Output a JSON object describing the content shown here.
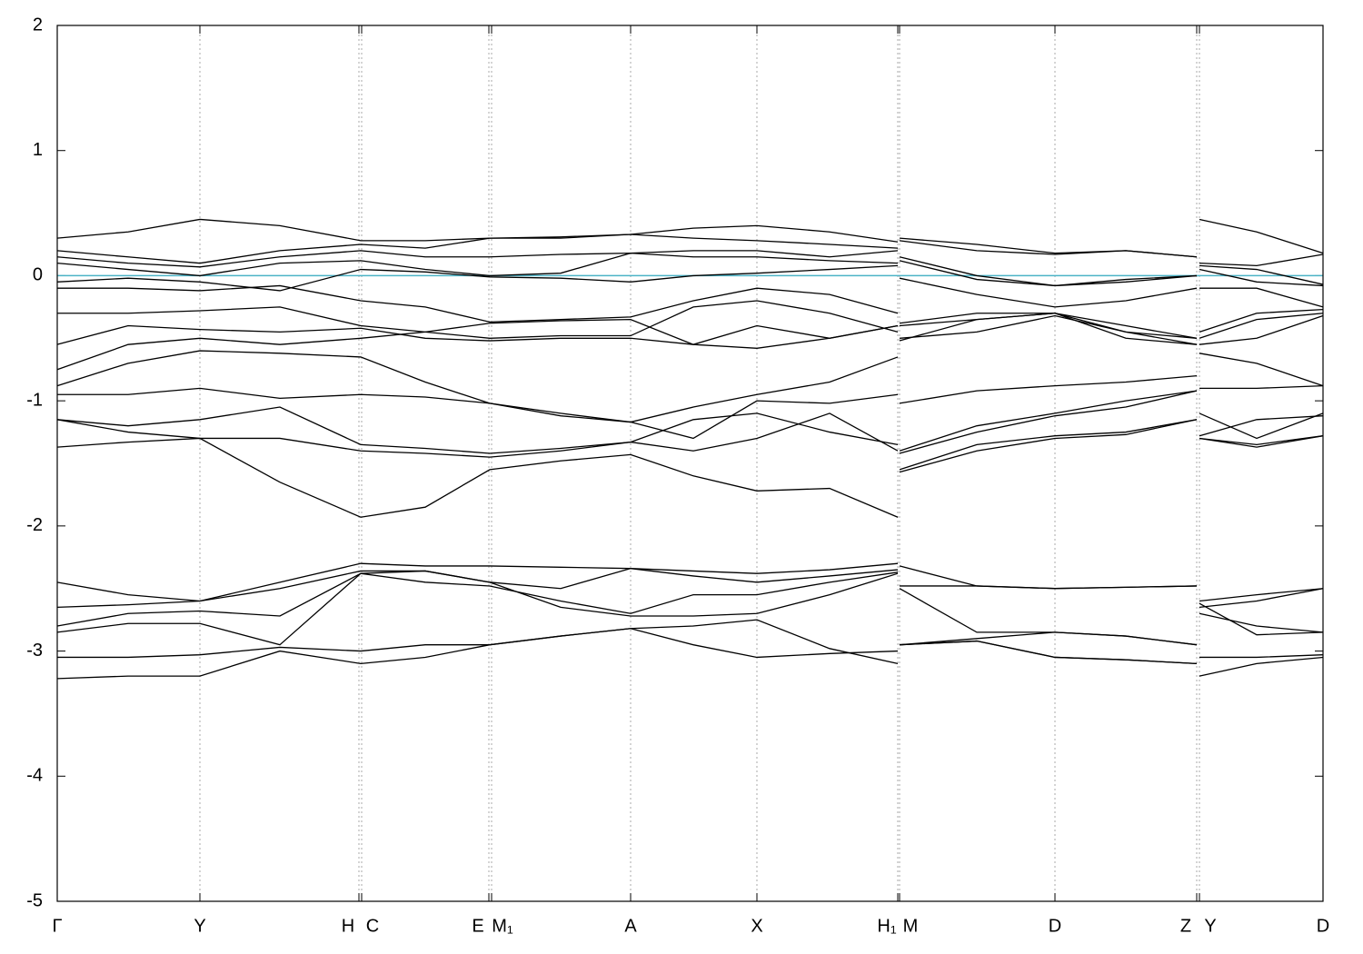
{
  "chart_data": {
    "type": "line",
    "x": [
      0,
      0.78,
      1.57,
      2.45,
      3.34,
      4.05,
      4.76,
      5.54,
      6.31,
      7.0,
      7.7,
      8.5,
      9.25,
      9.26,
      9.27,
      10.12,
      10.98,
      11.76,
      12.54,
      12.555,
      12.57,
      13.2,
      13.93
    ],
    "xlim": [
      0,
      13.93
    ],
    "xticks": [
      {
        "value": 0,
        "label": "Γ"
      },
      {
        "value": 1.57,
        "label": "Y"
      },
      {
        "value": 3.32,
        "label": "H"
      },
      {
        "value": 3.35,
        "label": "C"
      },
      {
        "value": 4.75,
        "label": "E"
      },
      {
        "value": 4.78,
        "label": "M₁"
      },
      {
        "value": 6.31,
        "label": "A"
      },
      {
        "value": 7.7,
        "label": "X"
      },
      {
        "value": 9.25,
        "label": "H₁"
      },
      {
        "value": 9.27,
        "label": "M"
      },
      {
        "value": 10.98,
        "label": "D"
      },
      {
        "value": 12.54,
        "label": "Z"
      },
      {
        "value": 12.57,
        "label": "Y"
      },
      {
        "value": 13.93,
        "label": "D"
      }
    ],
    "ylim": [
      -5,
      2
    ],
    "yticks": [
      -5,
      -4,
      -3,
      -2,
      -1,
      0,
      1,
      2
    ],
    "grid": true,
    "hlines": [
      {
        "y": 0,
        "color": "#4bb3c6"
      }
    ],
    "series": [
      {
        "color": "#000000",
        "values": [
          0.3,
          0.35,
          0.45,
          0.4,
          0.28,
          0.28,
          0.3,
          0.31,
          0.33,
          0.38,
          0.4,
          0.35,
          0.27,
          null,
          0.3,
          0.25,
          0.18,
          0.2,
          0.15,
          null,
          0.45,
          0.35,
          0.18
        ]
      },
      {
        "color": "#000000",
        "values": [
          0.2,
          0.15,
          0.1,
          0.2,
          0.25,
          0.22,
          0.3,
          0.3,
          0.33,
          0.3,
          0.28,
          0.25,
          0.22,
          null,
          0.28,
          0.2,
          0.17,
          0.2,
          0.15,
          null,
          0.1,
          0.08,
          0.17
        ]
      },
      {
        "color": "#000000",
        "values": [
          0.15,
          0.1,
          0.07,
          0.15,
          0.2,
          0.15,
          0.15,
          0.17,
          0.18,
          0.2,
          0.2,
          0.15,
          0.2,
          null,
          0.15,
          0.0,
          -0.08,
          -0.05,
          0.0,
          null,
          0.08,
          0.05,
          -0.07
        ]
      },
      {
        "color": "#000000",
        "values": [
          0.1,
          0.05,
          0.0,
          0.1,
          0.12,
          0.05,
          0.0,
          0.02,
          0.18,
          0.15,
          0.15,
          0.12,
          0.1,
          null,
          0.12,
          -0.03,
          -0.08,
          -0.03,
          0.0,
          null,
          0.05,
          -0.05,
          -0.08
        ]
      },
      {
        "color": "#000000",
        "values": [
          -0.05,
          -0.02,
          -0.05,
          -0.12,
          0.05,
          0.03,
          -0.01,
          -0.02,
          -0.05,
          0.0,
          0.02,
          0.05,
          0.08,
          null,
          -0.02,
          -0.15,
          -0.25,
          -0.2,
          -0.1,
          null,
          -0.1,
          -0.1,
          -0.25
        ]
      },
      {
        "color": "#000000",
        "values": [
          -0.1,
          -0.1,
          -0.12,
          -0.08,
          -0.2,
          -0.25,
          -0.37,
          -0.35,
          -0.33,
          -0.2,
          -0.1,
          -0.15,
          -0.3,
          null,
          -0.38,
          -0.3,
          -0.3,
          -0.45,
          -0.5,
          null,
          -0.45,
          -0.3,
          -0.27
        ]
      },
      {
        "color": "#000000",
        "values": [
          -0.3,
          -0.3,
          -0.28,
          -0.25,
          -0.4,
          -0.45,
          -0.5,
          -0.48,
          -0.48,
          -0.25,
          -0.2,
          -0.3,
          -0.45,
          null,
          -0.4,
          -0.35,
          -0.3,
          -0.5,
          -0.55,
          null,
          -0.5,
          -0.35,
          -0.3
        ]
      },
      {
        "color": "#000000",
        "values": [
          -0.55,
          -0.4,
          -0.43,
          -0.45,
          -0.42,
          -0.5,
          -0.52,
          -0.5,
          -0.5,
          -0.55,
          -0.4,
          -0.5,
          -0.4,
          null,
          -0.5,
          -0.45,
          -0.32,
          -0.45,
          -0.55,
          null,
          -0.55,
          -0.5,
          -0.32
        ]
      },
      {
        "color": "#000000",
        "values": [
          -0.75,
          -0.55,
          -0.5,
          -0.55,
          -0.5,
          -0.45,
          -0.38,
          -0.36,
          -0.35,
          -0.55,
          -0.58,
          -0.5,
          -0.4,
          null,
          -0.52,
          -0.35,
          -0.3,
          -0.4,
          -0.5,
          null,
          -0.62,
          -0.7,
          -0.88
        ]
      },
      {
        "color": "#000000",
        "values": [
          -0.88,
          -0.7,
          -0.6,
          -0.62,
          -0.65,
          -0.85,
          -1.02,
          -1.1,
          -1.17,
          -1.05,
          -0.95,
          -0.85,
          -0.65,
          null,
          -1.02,
          -0.92,
          -0.88,
          -0.85,
          -0.8,
          null,
          -0.9,
          -0.9,
          -0.88
        ]
      },
      {
        "color": "#000000",
        "values": [
          -0.95,
          -0.95,
          -0.9,
          -0.98,
          -0.95,
          -0.97,
          -1.02,
          -1.12,
          -1.17,
          -1.3,
          -1.0,
          -1.02,
          -0.95,
          null,
          -1.4,
          -1.2,
          -1.1,
          -1.0,
          -0.92,
          null,
          -1.1,
          -1.3,
          -1.1
        ]
      },
      {
        "color": "#000000",
        "values": [
          -1.15,
          -1.2,
          -1.15,
          -1.05,
          -1.35,
          -1.38,
          -1.42,
          -1.38,
          -1.33,
          -1.15,
          -1.1,
          -1.25,
          -1.35,
          null,
          -1.42,
          -1.25,
          -1.12,
          -1.05,
          -0.92,
          null,
          -1.28,
          -1.15,
          -1.12
        ]
      },
      {
        "color": "#000000",
        "values": [
          -1.15,
          -1.25,
          -1.3,
          -1.3,
          -1.4,
          -1.42,
          -1.45,
          -1.4,
          -1.33,
          -1.4,
          -1.3,
          -1.1,
          -1.4,
          null,
          -1.55,
          -1.35,
          -1.28,
          -1.25,
          -1.15,
          null,
          -1.3,
          -1.35,
          -1.28
        ]
      },
      {
        "color": "#000000",
        "values": [
          -1.37,
          -1.33,
          -1.3,
          -1.65,
          -1.93,
          -1.85,
          -1.55,
          -1.48,
          -1.43,
          -1.6,
          -1.72,
          -1.7,
          -1.93,
          null,
          -1.57,
          -1.4,
          -1.3,
          -1.27,
          -1.15,
          null,
          -1.3,
          -1.37,
          -1.28
        ]
      },
      {
        "color": "#000000",
        "values": [
          -2.45,
          -2.55,
          -2.6,
          -2.45,
          -2.3,
          -2.32,
          -2.32,
          -2.33,
          -2.34,
          -2.36,
          -2.38,
          -2.35,
          -2.3,
          null,
          -2.32,
          -2.48,
          -2.5,
          -2.49,
          -2.48,
          null,
          -2.6,
          -2.55,
          -2.5
        ]
      },
      {
        "color": "#000000",
        "values": [
          -2.65,
          -2.63,
          -2.6,
          -2.5,
          -2.36,
          -2.36,
          -2.45,
          -2.5,
          -2.34,
          -2.4,
          -2.45,
          -2.4,
          -2.35,
          null,
          -2.48,
          -2.48,
          -2.5,
          -2.49,
          -2.48,
          null,
          -2.65,
          -2.6,
          -2.5
        ]
      },
      {
        "color": "#000000",
        "values": [
          -2.8,
          -2.7,
          -2.68,
          -2.72,
          -2.38,
          -2.45,
          -2.48,
          -2.6,
          -2.7,
          -2.55,
          -2.55,
          -2.45,
          -2.37,
          null,
          -2.5,
          -2.85,
          -2.85,
          -2.88,
          -2.95,
          null,
          -2.7,
          -2.8,
          -2.85
        ]
      },
      {
        "color": "#000000",
        "values": [
          -2.85,
          -2.78,
          -2.78,
          -2.95,
          -2.38,
          -2.36,
          -2.45,
          -2.65,
          -2.72,
          -2.72,
          -2.7,
          -2.55,
          -2.38,
          null,
          -2.95,
          -2.9,
          -2.85,
          -2.88,
          -2.95,
          null,
          -2.62,
          -2.87,
          -2.85
        ]
      },
      {
        "color": "#000000",
        "values": [
          -3.05,
          -3.05,
          -3.03,
          -2.97,
          -3.0,
          -2.95,
          -2.95,
          -2.88,
          -2.82,
          -2.8,
          -2.75,
          -2.98,
          -3.1,
          null,
          -2.95,
          -2.92,
          -3.05,
          -3.07,
          -3.1,
          null,
          -3.05,
          -3.05,
          -3.03
        ]
      },
      {
        "color": "#000000",
        "values": [
          -3.22,
          -3.2,
          -3.2,
          -3.0,
          -3.1,
          -3.05,
          -2.95,
          -2.88,
          -2.82,
          -2.95,
          -3.05,
          -3.02,
          -3.0,
          null,
          -2.95,
          -2.92,
          -3.05,
          -3.07,
          -3.1,
          null,
          -3.2,
          -3.1,
          -3.05
        ]
      }
    ]
  }
}
